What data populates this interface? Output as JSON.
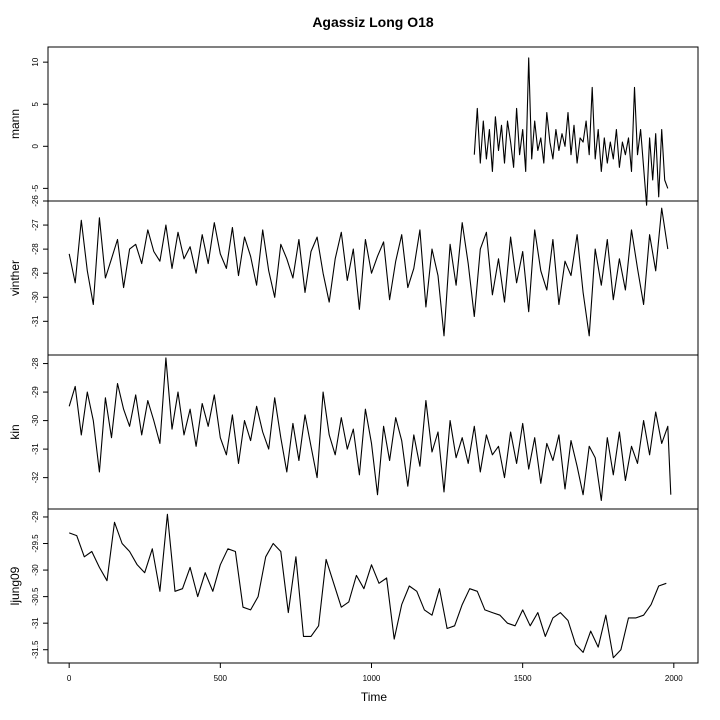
{
  "chart_data": {
    "type": "line",
    "title": "Agassiz Long O18",
    "xlabel": "Time",
    "xlim": [
      -70,
      2080
    ],
    "x_ticks": [
      0,
      500,
      1000,
      1500,
      2000
    ],
    "x_tick_labels": [
      "0",
      "500",
      "1000",
      "1500",
      "2000"
    ],
    "series": [
      {
        "name": "mann",
        "ylim": [
          -6.5,
          11.8
        ],
        "y_ticks": [
          10,
          5,
          0,
          -5
        ],
        "y_tick_labels": [
          "10",
          "5",
          "0",
          "-5"
        ],
        "x": [
          1340,
          1350,
          1360,
          1370,
          1380,
          1390,
          1400,
          1410,
          1420,
          1430,
          1440,
          1450,
          1460,
          1470,
          1480,
          1490,
          1500,
          1510,
          1520,
          1530,
          1540,
          1550,
          1560,
          1570,
          1580,
          1590,
          1600,
          1610,
          1620,
          1630,
          1640,
          1650,
          1660,
          1670,
          1680,
          1690,
          1700,
          1710,
          1720,
          1730,
          1740,
          1750,
          1760,
          1770,
          1780,
          1790,
          1800,
          1810,
          1820,
          1830,
          1840,
          1850,
          1860,
          1870,
          1880,
          1890,
          1900,
          1910,
          1920,
          1930,
          1940,
          1950,
          1960,
          1970,
          1980
        ],
        "values": [
          -1,
          4.5,
          -2,
          3,
          -1.5,
          2,
          -3,
          3.5,
          -0.5,
          2.5,
          -2,
          3,
          0.5,
          -2.5,
          4.5,
          -1,
          2,
          -3,
          10.5,
          -1.5,
          3,
          -0.5,
          1,
          -2,
          4,
          0.5,
          -1.5,
          2,
          -0.5,
          1.5,
          0,
          4,
          -1,
          2.5,
          -2,
          1,
          0.5,
          3,
          -1,
          7,
          -1.5,
          2,
          -3,
          1,
          -2,
          0.5,
          -1.5,
          2,
          -2.5,
          0.5,
          -1,
          1,
          -3,
          7,
          -1,
          2,
          -2.5,
          -7,
          1,
          -4,
          1.5,
          -6,
          2,
          -4,
          -5
        ]
      },
      {
        "name": "vinther",
        "ylim": [
          -32.4,
          -26.0
        ],
        "y_ticks": [
          -26,
          -27,
          -28,
          -29,
          -30,
          -31
        ],
        "y_tick_labels": [
          "-26",
          "-27",
          "-28",
          "-29",
          "-30",
          "-31"
        ],
        "x": [
          0,
          20,
          40,
          60,
          80,
          100,
          120,
          140,
          160,
          180,
          200,
          220,
          240,
          260,
          280,
          300,
          320,
          340,
          360,
          380,
          400,
          420,
          440,
          460,
          480,
          500,
          520,
          540,
          560,
          580,
          600,
          620,
          640,
          660,
          680,
          700,
          720,
          740,
          760,
          780,
          800,
          820,
          840,
          860,
          880,
          900,
          920,
          940,
          960,
          980,
          1000,
          1020,
          1040,
          1060,
          1080,
          1100,
          1120,
          1140,
          1160,
          1180,
          1200,
          1220,
          1240,
          1260,
          1280,
          1300,
          1320,
          1340,
          1360,
          1380,
          1400,
          1420,
          1440,
          1460,
          1480,
          1500,
          1520,
          1540,
          1560,
          1580,
          1600,
          1620,
          1640,
          1660,
          1680,
          1700,
          1720,
          1740,
          1760,
          1780,
          1800,
          1820,
          1840,
          1860,
          1880,
          1900,
          1920,
          1940,
          1960,
          1980
        ],
        "values": [
          -28.2,
          -29.4,
          -26.8,
          -28.9,
          -30.3,
          -26.7,
          -29.2,
          -28.4,
          -27.6,
          -29.6,
          -28.0,
          -27.8,
          -28.6,
          -27.2,
          -28.1,
          -28.5,
          -27.0,
          -28.8,
          -27.3,
          -28.4,
          -27.9,
          -29.0,
          -27.4,
          -28.6,
          -26.9,
          -28.2,
          -28.8,
          -27.1,
          -29.1,
          -27.5,
          -28.3,
          -29.5,
          -27.2,
          -28.9,
          -30.0,
          -27.8,
          -28.4,
          -29.2,
          -27.6,
          -29.8,
          -28.1,
          -27.5,
          -29.0,
          -30.2,
          -28.4,
          -27.3,
          -29.3,
          -28.0,
          -30.5,
          -27.6,
          -29.0,
          -28.3,
          -27.7,
          -30.1,
          -28.5,
          -27.4,
          -29.6,
          -28.8,
          -27.2,
          -30.4,
          -28.0,
          -29.1,
          -31.6,
          -27.8,
          -29.5,
          -26.9,
          -28.6,
          -30.8,
          -28.0,
          -27.3,
          -29.9,
          -28.4,
          -30.2,
          -27.5,
          -29.4,
          -28.1,
          -30.6,
          -27.2,
          -28.9,
          -29.7,
          -27.6,
          -30.3,
          -28.5,
          -29.1,
          -27.4,
          -29.8,
          -31.6,
          -28.0,
          -29.5,
          -27.6,
          -30.1,
          -28.4,
          -29.7,
          -27.2,
          -28.8,
          -30.3,
          -27.4,
          -28.9,
          -26.3,
          -28.0
        ]
      },
      {
        "name": "kin",
        "ylim": [
          -33.1,
          -27.7
        ],
        "y_ticks": [
          -28,
          -29,
          -30,
          -31,
          -32
        ],
        "y_tick_labels": [
          "-28",
          "-29",
          "-30",
          "-31",
          "-32"
        ],
        "x": [
          0,
          20,
          40,
          60,
          80,
          100,
          120,
          140,
          160,
          180,
          200,
          220,
          240,
          260,
          280,
          300,
          320,
          340,
          360,
          380,
          400,
          420,
          440,
          460,
          480,
          500,
          520,
          540,
          560,
          580,
          600,
          620,
          640,
          660,
          680,
          700,
          720,
          740,
          760,
          780,
          800,
          820,
          840,
          860,
          880,
          900,
          920,
          940,
          960,
          980,
          1000,
          1020,
          1040,
          1060,
          1080,
          1100,
          1120,
          1140,
          1160,
          1180,
          1200,
          1220,
          1240,
          1260,
          1280,
          1300,
          1320,
          1340,
          1360,
          1380,
          1400,
          1420,
          1440,
          1460,
          1480,
          1500,
          1520,
          1540,
          1560,
          1580,
          1600,
          1620,
          1640,
          1660,
          1680,
          1700,
          1720,
          1740,
          1760,
          1780,
          1800,
          1820,
          1840,
          1860,
          1880,
          1900,
          1920,
          1940,
          1960,
          1980,
          1990
        ],
        "values": [
          -29.5,
          -28.8,
          -30.5,
          -29.0,
          -30.0,
          -31.8,
          -29.2,
          -30.6,
          -28.7,
          -29.6,
          -30.2,
          -29.1,
          -30.5,
          -29.3,
          -30.0,
          -30.8,
          -27.8,
          -30.3,
          -29.0,
          -30.5,
          -29.6,
          -30.9,
          -29.4,
          -30.2,
          -29.1,
          -30.6,
          -31.2,
          -29.8,
          -31.5,
          -30.0,
          -30.7,
          -29.5,
          -30.4,
          -31.0,
          -29.2,
          -30.6,
          -31.8,
          -30.1,
          -31.4,
          -29.8,
          -30.9,
          -32.0,
          -29.0,
          -30.5,
          -31.2,
          -29.9,
          -31.0,
          -30.3,
          -31.9,
          -29.6,
          -30.8,
          -32.6,
          -30.2,
          -31.4,
          -29.9,
          -30.7,
          -32.3,
          -30.5,
          -31.6,
          -29.3,
          -31.1,
          -30.4,
          -32.5,
          -30.0,
          -31.3,
          -30.6,
          -31.5,
          -30.2,
          -31.8,
          -30.5,
          -31.2,
          -30.9,
          -32.0,
          -30.4,
          -31.5,
          -30.1,
          -31.7,
          -30.6,
          -32.2,
          -30.8,
          -31.4,
          -30.5,
          -32.4,
          -30.7,
          -31.6,
          -32.6,
          -30.9,
          -31.3,
          -32.8,
          -30.6,
          -31.9,
          -30.4,
          -32.1,
          -30.9,
          -31.5,
          -30.0,
          -31.2,
          -29.7,
          -30.8,
          -30.2,
          -32.6
        ]
      },
      {
        "name": "ljung09",
        "ylim": [
          -31.75,
          -28.85
        ],
        "y_ticks": [
          -29,
          -29.5,
          -30,
          -30.5,
          -31,
          -31.5
        ],
        "y_tick_labels": [
          "-29",
          "-29.5",
          "-30",
          "-30.5",
          "-31",
          "-31.5"
        ],
        "x": [
          0,
          25,
          50,
          75,
          100,
          125,
          150,
          175,
          200,
          225,
          250,
          275,
          300,
          325,
          350,
          375,
          400,
          425,
          450,
          475,
          500,
          525,
          550,
          575,
          600,
          625,
          650,
          675,
          700,
          725,
          750,
          775,
          800,
          825,
          850,
          875,
          900,
          925,
          950,
          975,
          1000,
          1025,
          1050,
          1075,
          1100,
          1125,
          1150,
          1175,
          1200,
          1225,
          1250,
          1275,
          1300,
          1325,
          1350,
          1375,
          1400,
          1425,
          1450,
          1475,
          1500,
          1525,
          1550,
          1575,
          1600,
          1625,
          1650,
          1675,
          1700,
          1725,
          1750,
          1775,
          1800,
          1825,
          1850,
          1875,
          1900,
          1925,
          1950,
          1975
        ],
        "values": [
          -29.3,
          -29.35,
          -29.75,
          -29.65,
          -29.95,
          -30.2,
          -29.1,
          -29.5,
          -29.65,
          -29.9,
          -30.05,
          -29.6,
          -30.4,
          -28.95,
          -30.4,
          -30.35,
          -29.95,
          -30.5,
          -30.05,
          -30.4,
          -29.9,
          -29.6,
          -29.65,
          -30.7,
          -30.75,
          -30.5,
          -29.75,
          -29.5,
          -29.65,
          -30.8,
          -29.75,
          -31.25,
          -31.25,
          -31.05,
          -29.8,
          -30.25,
          -30.7,
          -30.6,
          -30.1,
          -30.35,
          -29.9,
          -30.25,
          -30.15,
          -31.3,
          -30.65,
          -30.3,
          -30.4,
          -30.75,
          -30.85,
          -30.35,
          -31.1,
          -31.05,
          -30.65,
          -30.35,
          -30.4,
          -30.75,
          -30.8,
          -30.85,
          -31.0,
          -31.05,
          -30.75,
          -31.05,
          -30.8,
          -31.25,
          -30.9,
          -30.8,
          -30.95,
          -31.4,
          -31.55,
          -31.15,
          -31.45,
          -30.85,
          -31.65,
          -31.5,
          -30.9,
          -30.9,
          -30.85,
          -30.65,
          -30.3,
          -30.25
        ]
      }
    ]
  }
}
